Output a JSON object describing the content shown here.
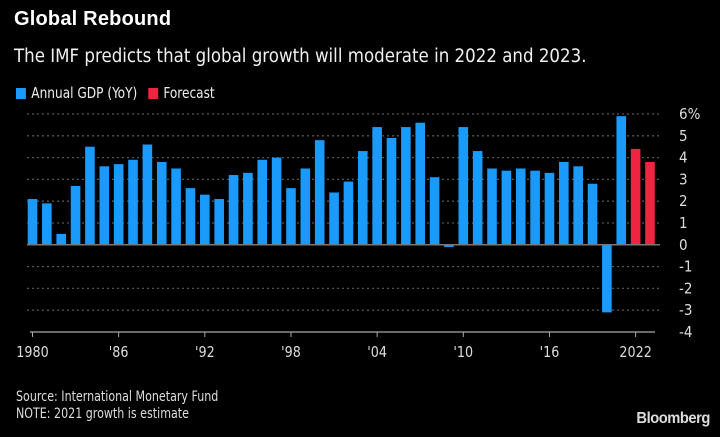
{
  "chart_data": {
    "type": "bar",
    "title": "Global Rebound",
    "subtitle": "The IMF predicts that global growth will moderate in 2022 and 2023.",
    "xlabel": "",
    "ylabel": "",
    "ylim": [
      -4,
      6
    ],
    "yticks": [
      "6%",
      "5",
      "4",
      "3",
      "2",
      "1",
      "0",
      "-1",
      "-2",
      "-3",
      "-4"
    ],
    "xticks": [
      "1980",
      "'86",
      "'92",
      "'98",
      "'04",
      "'10",
      "'16",
      "2022"
    ],
    "grid": true,
    "legend_position": "top-left",
    "x": [
      1980,
      1981,
      1982,
      1983,
      1984,
      1985,
      1986,
      1987,
      1988,
      1989,
      1990,
      1991,
      1992,
      1993,
      1994,
      1995,
      1996,
      1997,
      1998,
      1999,
      2000,
      2001,
      2002,
      2003,
      2004,
      2005,
      2006,
      2007,
      2008,
      2009,
      2010,
      2011,
      2012,
      2013,
      2014,
      2015,
      2016,
      2017,
      2018,
      2019,
      2020,
      2021,
      2022,
      2023
    ],
    "series": [
      {
        "name": "Annual GDP (YoY)",
        "color": "#1a9bfc",
        "values": [
          2.1,
          1.9,
          0.5,
          2.7,
          4.5,
          3.6,
          3.7,
          3.9,
          4.6,
          3.8,
          3.5,
          2.6,
          2.3,
          2.1,
          3.2,
          3.3,
          3.9,
          4.0,
          2.6,
          3.5,
          4.8,
          2.4,
          2.9,
          4.3,
          5.4,
          4.9,
          5.4,
          5.6,
          3.1,
          -0.1,
          5.4,
          4.3,
          3.5,
          3.4,
          3.5,
          3.4,
          3.3,
          3.8,
          3.6,
          2.8,
          -3.1,
          5.9,
          null,
          null
        ]
      },
      {
        "name": "Forecast",
        "color": "#ee2440",
        "values": [
          null,
          null,
          null,
          null,
          null,
          null,
          null,
          null,
          null,
          null,
          null,
          null,
          null,
          null,
          null,
          null,
          null,
          null,
          null,
          null,
          null,
          null,
          null,
          null,
          null,
          null,
          null,
          null,
          null,
          null,
          null,
          null,
          null,
          null,
          null,
          null,
          null,
          null,
          null,
          null,
          null,
          null,
          4.4,
          3.8
        ]
      }
    ]
  },
  "footer": {
    "source": "Source: International Monetary Fund",
    "note": "NOTE: 2021 growth is estimate",
    "logo": "Bloomberg"
  }
}
